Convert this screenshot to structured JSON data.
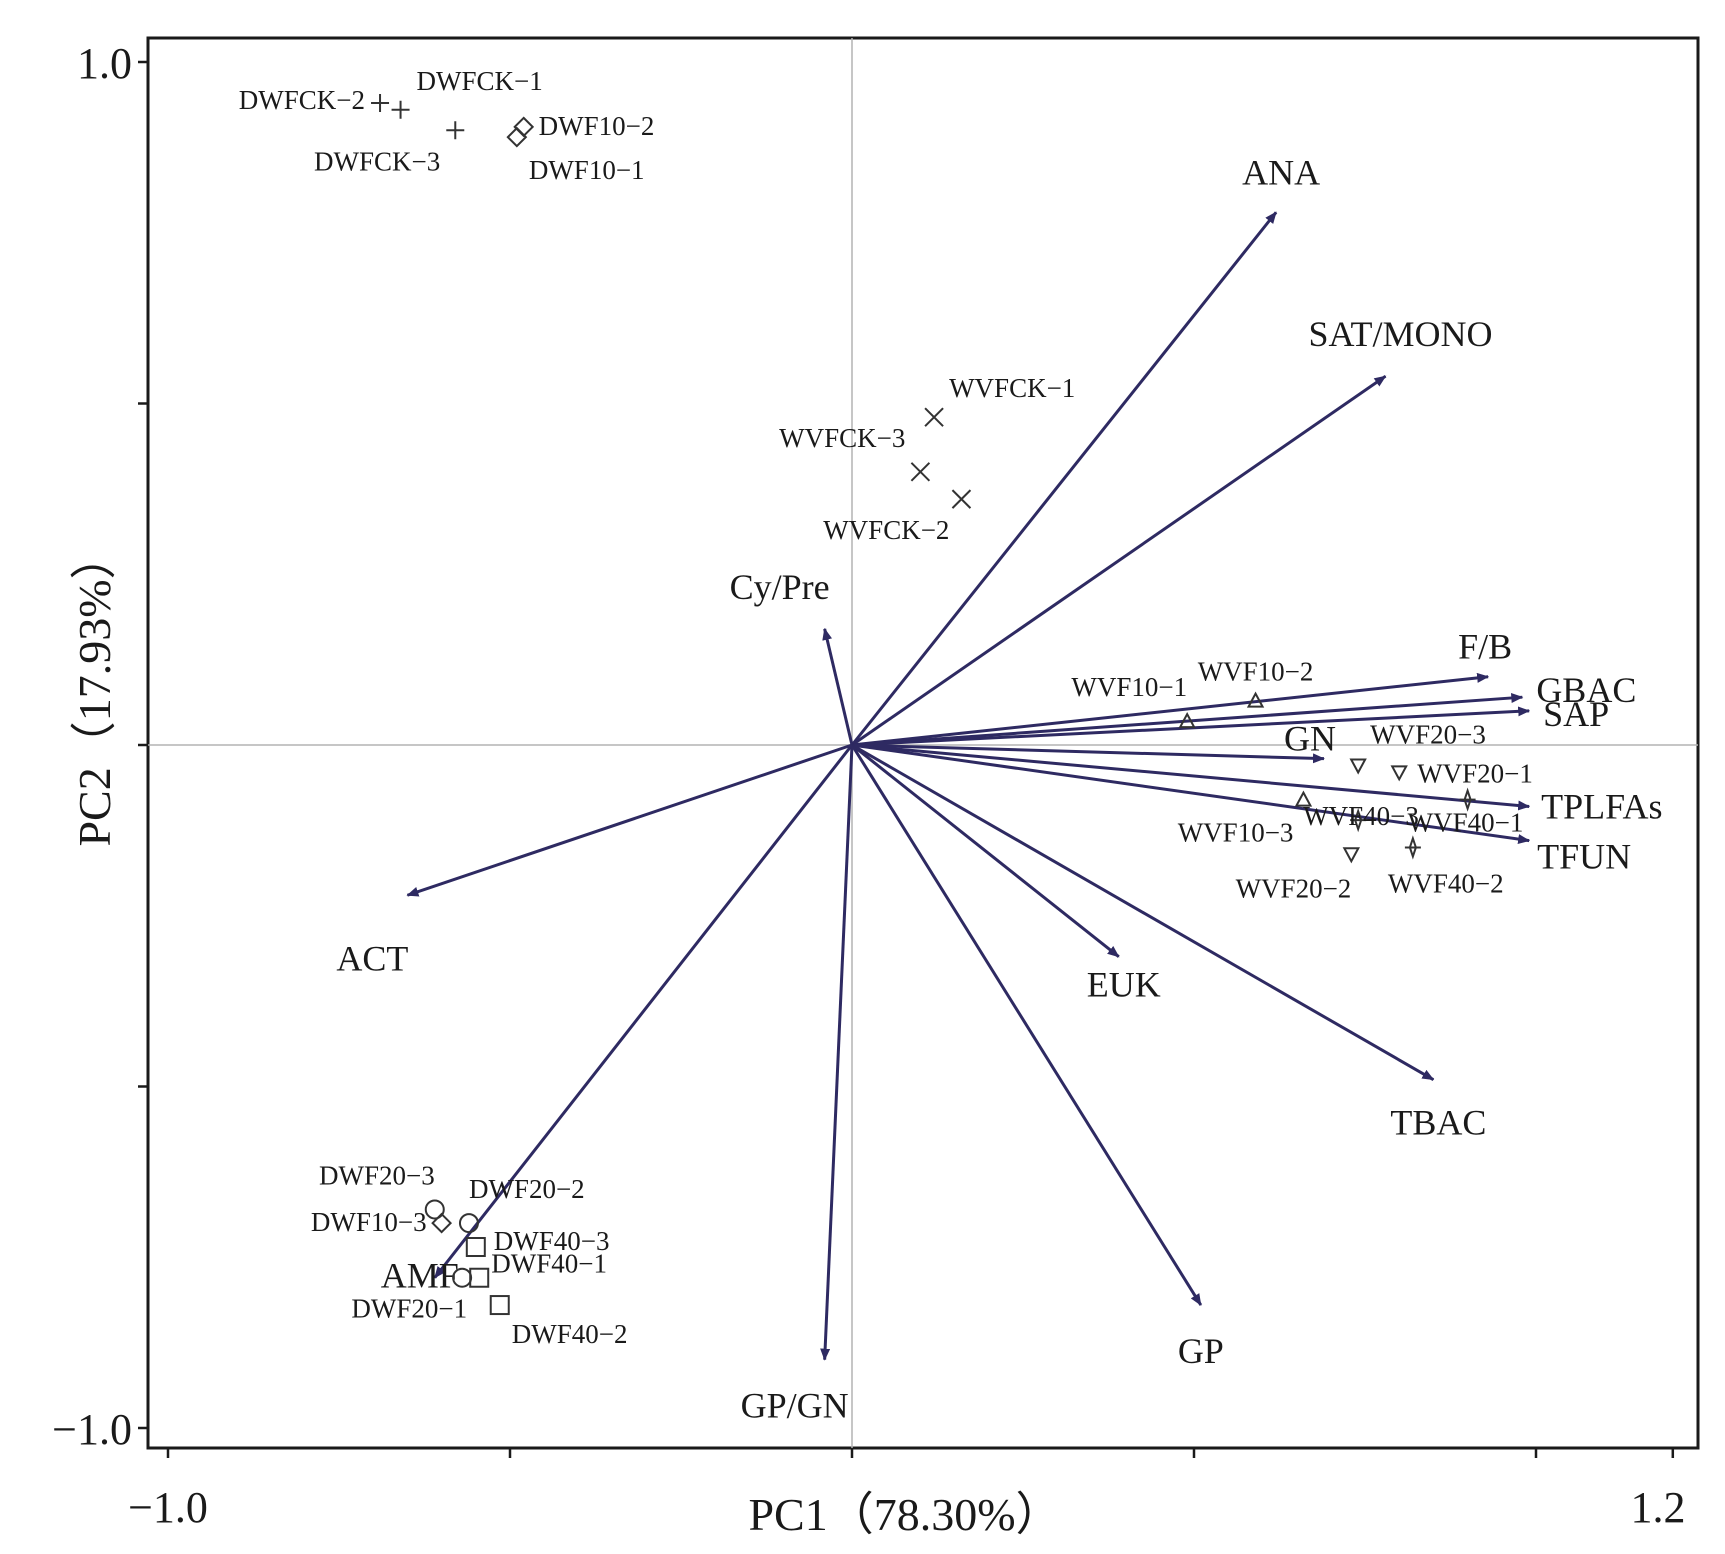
{
  "chart_data": {
    "type": "scatter",
    "subtype": "PCA biplot",
    "xlabel": "PC1（78.30%）",
    "ylabel": "PC2（17.93%）",
    "xlim": [
      -1.0,
      1.2
    ],
    "ylim": [
      -1.0,
      1.0
    ],
    "x_tick_labels": [
      {
        "value": -1.0,
        "label": "−1.0"
      },
      {
        "value": 1.2,
        "label": "1.2"
      }
    ],
    "y_tick_labels": [
      {
        "value": 1.0,
        "label": "1.0"
      },
      {
        "value": -1.0,
        "label": "−1.0"
      }
    ],
    "x_ticks": [
      -1.0,
      -0.5,
      0.0,
      0.5,
      1.0,
      1.2
    ],
    "y_ticks": [
      -1.0,
      -0.5,
      0.0,
      0.5,
      1.0
    ],
    "grid": false,
    "reference_lines": {
      "x": 0,
      "y": 0
    },
    "loadings_color": "#2e2a62",
    "loadings": [
      {
        "name": "ANA",
        "x": 0.62,
        "y": 0.78
      },
      {
        "name": "SAT/MONO",
        "x": 0.78,
        "y": 0.54
      },
      {
        "name": "Cy/Pre",
        "x": -0.04,
        "y": 0.17
      },
      {
        "name": "F/B",
        "x": 0.93,
        "y": 0.1
      },
      {
        "name": "GBAC",
        "x": 0.98,
        "y": 0.07
      },
      {
        "name": "SAP",
        "x": 0.99,
        "y": 0.05
      },
      {
        "name": "GN",
        "x": 0.69,
        "y": -0.02
      },
      {
        "name": "TPLFAs",
        "x": 0.99,
        "y": -0.09
      },
      {
        "name": "TFUN",
        "x": 0.99,
        "y": -0.14
      },
      {
        "name": "ACT",
        "x": -0.65,
        "y": -0.22
      },
      {
        "name": "EUK",
        "x": 0.39,
        "y": -0.31
      },
      {
        "name": "TBAC",
        "x": 0.85,
        "y": -0.49
      },
      {
        "name": "GP",
        "x": 0.51,
        "y": -0.82
      },
      {
        "name": "GP/GN",
        "x": -0.04,
        "y": -0.9
      },
      {
        "name": "AMF",
        "x": -0.61,
        "y": -0.78
      }
    ],
    "samples": [
      {
        "name": "DWFCK-1",
        "x": -0.66,
        "y": 0.93,
        "marker": "plus"
      },
      {
        "name": "DWFCK-2",
        "x": -0.69,
        "y": 0.94,
        "marker": "plus"
      },
      {
        "name": "DWFCK-3",
        "x": -0.58,
        "y": 0.9,
        "marker": "plus"
      },
      {
        "name": "DWF10-2",
        "x": -0.48,
        "y": 0.905,
        "marker": "diamond"
      },
      {
        "name": "DWF10-1",
        "x": -0.49,
        "y": 0.89,
        "marker": "diamond"
      },
      {
        "name": "WVFCK-1",
        "x": 0.12,
        "y": 0.48,
        "marker": "x"
      },
      {
        "name": "WVFCK-3",
        "x": 0.1,
        "y": 0.4,
        "marker": "x"
      },
      {
        "name": "WVFCK-2",
        "x": 0.16,
        "y": 0.36,
        "marker": "x"
      },
      {
        "name": "WVF10-1",
        "x": 0.49,
        "y": 0.035,
        "marker": "triangle-up"
      },
      {
        "name": "WVF10-2",
        "x": 0.59,
        "y": 0.065,
        "marker": "triangle-up"
      },
      {
        "name": "WVF10-3",
        "x": 0.66,
        "y": -0.08,
        "marker": "triangle-up"
      },
      {
        "name": "WVF20-3",
        "x": 0.74,
        "y": -0.03,
        "marker": "triangle-down"
      },
      {
        "name": "WVF20-1",
        "x": 0.8,
        "y": -0.04,
        "marker": "triangle-down"
      },
      {
        "name": "WVF20-2",
        "x": 0.73,
        "y": -0.16,
        "marker": "triangle-down"
      },
      {
        "name": "WVF40-3",
        "x": 0.74,
        "y": -0.11,
        "marker": "star"
      },
      {
        "name": "WVF40-1",
        "x": 0.9,
        "y": -0.08,
        "marker": "star"
      },
      {
        "name": "WVF40-2",
        "x": 0.82,
        "y": -0.15,
        "marker": "star"
      },
      {
        "name": "DWF20-3",
        "x": -0.61,
        "y": -0.68,
        "marker": "circle"
      },
      {
        "name": "DWF20-2",
        "x": -0.56,
        "y": -0.7,
        "marker": "circle"
      },
      {
        "name": "DWF10-3",
        "x": -0.6,
        "y": -0.7,
        "marker": "diamond"
      },
      {
        "name": "DWF20-1",
        "x": -0.57,
        "y": -0.78,
        "marker": "circle"
      },
      {
        "name": "DWF40-3",
        "x": -0.55,
        "y": -0.735,
        "marker": "square"
      },
      {
        "name": "DWF40-1",
        "x": -0.545,
        "y": -0.78,
        "marker": "square"
      },
      {
        "name": "DWF40-2",
        "x": -0.515,
        "y": -0.82,
        "marker": "square"
      }
    ]
  }
}
